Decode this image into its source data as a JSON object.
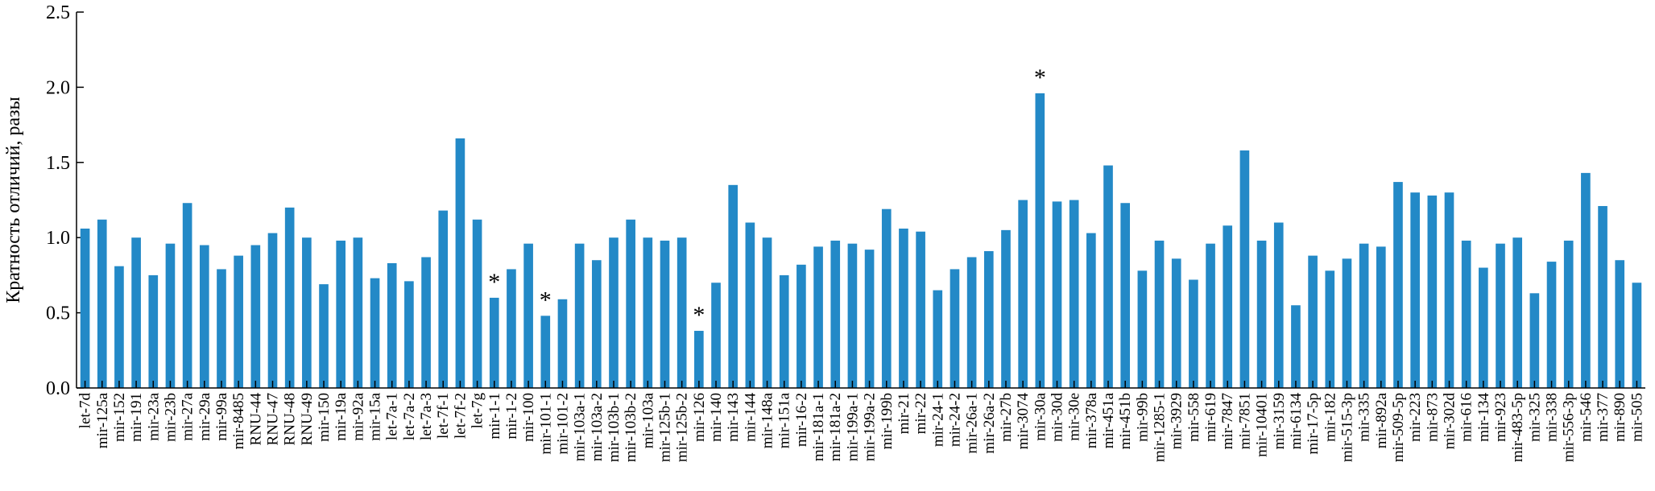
{
  "chart_data": {
    "type": "bar",
    "title": "",
    "xlabel": "",
    "ylabel": "Кратность отличий, разы",
    "ylim": [
      0,
      2.5
    ],
    "yticks": [
      "0.0",
      "0.5",
      "1.0",
      "1.5",
      "2.0",
      "2.5"
    ],
    "grid": false,
    "legend": "none",
    "bar_color": "#2389c7",
    "annotation_marker": "*",
    "categories": [
      "let-7d",
      "mir-125a",
      "mir-152",
      "mir-191",
      "mir-23a",
      "mir-23b",
      "mir-27a",
      "mir-29a",
      "mir-99a",
      "mir-8485",
      "RNU-44",
      "RNU-47",
      "RNU-48",
      "RNU-49",
      "mir-150",
      "mir-19a",
      "mir-92a",
      "mir-15a",
      "let-7a-1",
      "let-7a-2",
      "let-7a-3",
      "let-7f-1",
      "let-7f-2",
      "let-7g",
      "mir-1-1",
      "mir-1-2",
      "mir-100",
      "mir-101-1",
      "mir-101-2",
      "mir-103a-1",
      "mir-103a-2",
      "mir-103b-1",
      "mir-103b-2",
      "mir-103a",
      "mir-125b-1",
      "mir-125b-2",
      "mir-126",
      "mir-140",
      "mir-143",
      "mir-144",
      "mir-148a",
      "mir-151a",
      "mir-16-2",
      "mir-181a-1",
      "mir-181a-2",
      "mir-199a-1",
      "mir-199a-2",
      "mir-199b",
      "mir-21",
      "mir-22",
      "mir-24-1",
      "mir-24-2",
      "mir-26a-1",
      "mir-26a-2",
      "mir-27b",
      "mir-3074",
      "mir-30a",
      "mir-30d",
      "mir-30e",
      "mir-378a",
      "mir-451a",
      "mir-451b",
      "mir-99b",
      "mir-1285-1",
      "mir-3929",
      "mir-558",
      "mir-619",
      "mir-7847",
      "mir-7851",
      "mir-10401",
      "mir-3159",
      "mir-6134",
      "mir-17-5p",
      "mir-182",
      "mir-515-3p",
      "mir-335",
      "mir-892a",
      "mir-509-5p",
      "mir-223",
      "mir-873",
      "mir-302d",
      "mir-616",
      "mir-134",
      "mir-923",
      "mir-483-5p",
      "mir-325",
      "mir-338",
      "mir-556-3p",
      "mir-546",
      "mir-377",
      "mir-890",
      "mir-505"
    ],
    "values": [
      1.06,
      1.12,
      0.81,
      1.0,
      0.75,
      0.96,
      1.23,
      0.95,
      0.79,
      0.88,
      0.95,
      1.03,
      1.2,
      1.0,
      0.69,
      0.98,
      1.0,
      0.73,
      0.83,
      0.71,
      0.87,
      1.18,
      1.66,
      1.12,
      0.6,
      0.79,
      0.96,
      0.48,
      0.59,
      0.96,
      0.85,
      1.0,
      1.12,
      1.0,
      0.98,
      1.0,
      0.38,
      0.7,
      1.35,
      1.1,
      1.0,
      0.75,
      0.82,
      0.94,
      0.98,
      0.96,
      0.92,
      1.19,
      1.06,
      1.04,
      0.65,
      0.79,
      0.87,
      0.91,
      1.05,
      1.25,
      1.96,
      1.24,
      1.25,
      1.03,
      1.48,
      1.23,
      0.78,
      0.98,
      0.86,
      0.72,
      0.96,
      1.08,
      1.58,
      0.98,
      1.1,
      0.55,
      0.88,
      0.78,
      0.86,
      0.96,
      0.94,
      1.37,
      1.3,
      1.28,
      1.3,
      0.98,
      0.8,
      0.96,
      1.0,
      0.63,
      0.84,
      0.98,
      1.43,
      1.21,
      0.85,
      0.7
    ],
    "annotations": [
      {
        "category": "mir-1-1",
        "text": "*"
      },
      {
        "category": "mir-101-1",
        "text": "*"
      },
      {
        "category": "mir-126",
        "text": "*"
      },
      {
        "category": "mir-30a",
        "text": "*"
      }
    ]
  }
}
